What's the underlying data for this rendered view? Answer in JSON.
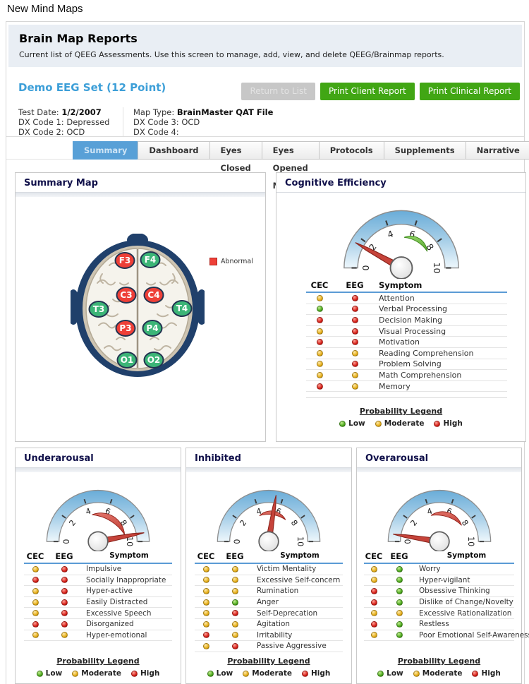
{
  "window": {
    "app_title": "New Mind Maps"
  },
  "header": {
    "title": "Brain Map Reports",
    "subtitle": "Current list of QEEG Assessments. Use this screen to manage, add, view, and delete QEEG/Brainmap reports."
  },
  "report": {
    "title": "Demo EEG Set (12 Point)",
    "buttons": {
      "return": "Return to List",
      "print_client": "Print Client Report",
      "print_clinical": "Print Clinical Report"
    },
    "info": {
      "test_date_label": "Test Date:",
      "test_date": "1/2/2007",
      "dx1_label": "DX Code 1:",
      "dx1": "Depressed",
      "dx2_label": "DX Code 2:",
      "dx2": "OCD",
      "map_type_label": "Map Type:",
      "map_type": "BrainMaster QAT File",
      "dx3_label": "DX Code 3:",
      "dx3": "OCD",
      "dx4_label": "DX Code 4:",
      "dx4": ""
    }
  },
  "tabs": [
    {
      "label": "Summary",
      "active": true
    },
    {
      "label": "Dashboard",
      "active": false
    },
    {
      "label": "Eyes Closed Maps",
      "active": false
    },
    {
      "label": "Eyes Opened Maps",
      "active": false
    },
    {
      "label": "Protocols",
      "active": false
    },
    {
      "label": "Supplements",
      "active": false
    },
    {
      "label": "Narrative",
      "active": false
    }
  ],
  "colors": {
    "accent_blue": "#58a0d7",
    "button_green": "#41a614",
    "abnormal_red": "#ee4038",
    "normal_green": "#3cb577",
    "dot_low": "#4ca81d",
    "dot_moderate": "#e5ad17",
    "dot_high": "#d61e17"
  },
  "summary_map": {
    "title": "Summary Map",
    "legend_label": "Abnormal",
    "electrodes": [
      {
        "id": "F3",
        "status": "abnormal"
      },
      {
        "id": "F4",
        "status": "normal"
      },
      {
        "id": "C3",
        "status": "abnormal"
      },
      {
        "id": "C4",
        "status": "abnormal"
      },
      {
        "id": "T3",
        "status": "normal"
      },
      {
        "id": "T4",
        "status": "normal"
      },
      {
        "id": "P3",
        "status": "abnormal"
      },
      {
        "id": "P4",
        "status": "normal"
      },
      {
        "id": "O1",
        "status": "normal"
      },
      {
        "id": "O2",
        "status": "normal"
      }
    ]
  },
  "probability_legend": {
    "title": "Probability Legend",
    "items": [
      {
        "label": "Low",
        "level": "low"
      },
      {
        "label": "Moderate",
        "level": "moderate"
      },
      {
        "label": "High",
        "level": "high"
      }
    ]
  },
  "chart_data": [
    {
      "type": "gauge",
      "title": "Cognitive Efficiency",
      "min": 0,
      "max": 10,
      "ticks": [
        0,
        2,
        4,
        6,
        8,
        10
      ],
      "value": 1.6,
      "band_from": 5.3,
      "band_to": 8.2,
      "band_color": "green"
    },
    {
      "type": "gauge",
      "title": "Underarousal",
      "min": 0,
      "max": 10,
      "ticks": [
        0,
        2,
        4,
        6,
        8,
        10
      ],
      "value": 9.4,
      "band_from": 4.3,
      "band_to": 9.2,
      "band_color": "red"
    },
    {
      "type": "gauge",
      "title": "Inhibited",
      "min": 0,
      "max": 10,
      "ticks": [
        0,
        2,
        4,
        6,
        8,
        10
      ],
      "value": 5.5,
      "band_from": 3.9,
      "band_to": 7.1,
      "band_color": "red"
    },
    {
      "type": "gauge",
      "title": "Overarousal",
      "min": 0,
      "max": 10,
      "ticks": [
        0,
        2,
        4,
        6,
        8,
        10
      ],
      "value": 0.5,
      "band_from": 4.0,
      "band_to": 8.0,
      "band_color": "red"
    }
  ],
  "panels": [
    {
      "title": "Cognitive Efficiency",
      "gauge": {
        "min": 0,
        "max": 10,
        "ticks": [
          0,
          2,
          4,
          6,
          8,
          10
        ],
        "value": 1.6,
        "band_from": 5.3,
        "band_to": 8.2,
        "band_color": "green"
      },
      "columns": {
        "cec": "CEC",
        "eeg": "EEG",
        "symptom": "Symptom"
      },
      "rows": [
        {
          "cec": "moderate",
          "eeg": "high",
          "symptom": "Attention"
        },
        {
          "cec": "low",
          "eeg": "high",
          "symptom": "Verbal Processing"
        },
        {
          "cec": "high",
          "eeg": "high",
          "symptom": "Decision Making"
        },
        {
          "cec": "moderate",
          "eeg": "high",
          "symptom": "Visual Processing"
        },
        {
          "cec": "high",
          "eeg": "high",
          "symptom": "Motivation"
        },
        {
          "cec": "moderate",
          "eeg": "moderate",
          "symptom": "Reading Comprehension"
        },
        {
          "cec": "moderate",
          "eeg": "high",
          "symptom": "Problem Solving"
        },
        {
          "cec": "moderate",
          "eeg": "moderate",
          "symptom": "Math Comprehension"
        },
        {
          "cec": "high",
          "eeg": "moderate",
          "symptom": "Memory"
        }
      ]
    },
    {
      "title": "Underarousal",
      "gauge": {
        "min": 0,
        "max": 10,
        "ticks": [
          0,
          2,
          4,
          6,
          8,
          10
        ],
        "value": 9.4,
        "band_from": 4.3,
        "band_to": 9.2,
        "band_color": "red"
      },
      "columns": {
        "cec": "CEC",
        "eeg": "EEG",
        "symptom": "Symptom"
      },
      "rows": [
        {
          "cec": "moderate",
          "eeg": "high",
          "symptom": "Impulsive"
        },
        {
          "cec": "high",
          "eeg": "high",
          "symptom": "Socially Inappropriate"
        },
        {
          "cec": "moderate",
          "eeg": "high",
          "symptom": "Hyper-active"
        },
        {
          "cec": "moderate",
          "eeg": "high",
          "symptom": "Easily Distracted"
        },
        {
          "cec": "moderate",
          "eeg": "high",
          "symptom": "Excessive Speech"
        },
        {
          "cec": "high",
          "eeg": "high",
          "symptom": "Disorganized"
        },
        {
          "cec": "moderate",
          "eeg": "moderate",
          "symptom": "Hyper-emotional"
        }
      ]
    },
    {
      "title": "Inhibited",
      "gauge": {
        "min": 0,
        "max": 10,
        "ticks": [
          0,
          2,
          4,
          6,
          8,
          10
        ],
        "value": 5.5,
        "band_from": 3.9,
        "band_to": 7.1,
        "band_color": "red"
      },
      "columns": {
        "cec": "CEC",
        "eeg": "EEG",
        "symptom": "Symptom"
      },
      "rows": [
        {
          "cec": "moderate",
          "eeg": "moderate",
          "symptom": "Victim Mentality"
        },
        {
          "cec": "moderate",
          "eeg": "moderate",
          "symptom": "Excessive Self-concern"
        },
        {
          "cec": "moderate",
          "eeg": "moderate",
          "symptom": "Rumination"
        },
        {
          "cec": "moderate",
          "eeg": "low",
          "symptom": "Anger"
        },
        {
          "cec": "moderate",
          "eeg": "high",
          "symptom": "Self-Deprecation"
        },
        {
          "cec": "moderate",
          "eeg": "moderate",
          "symptom": "Agitation"
        },
        {
          "cec": "high",
          "eeg": "moderate",
          "symptom": "Irritability"
        },
        {
          "cec": "moderate",
          "eeg": "high",
          "symptom": "Passive Aggressive"
        }
      ]
    },
    {
      "title": "Overarousal",
      "gauge": {
        "min": 0,
        "max": 10,
        "ticks": [
          0,
          2,
          4,
          6,
          8,
          10
        ],
        "value": 0.5,
        "band_from": 4.0,
        "band_to": 8.0,
        "band_color": "red"
      },
      "columns": {
        "cec": "CEC",
        "eeg": "EEG",
        "symptom": "Symptom"
      },
      "rows": [
        {
          "cec": "moderate",
          "eeg": "low",
          "symptom": "Worry"
        },
        {
          "cec": "moderate",
          "eeg": "low",
          "symptom": "Hyper-vigilant"
        },
        {
          "cec": "high",
          "eeg": "low",
          "symptom": "Obsessive Thinking"
        },
        {
          "cec": "high",
          "eeg": "low",
          "symptom": "Dislike of Change/Novelty"
        },
        {
          "cec": "moderate",
          "eeg": "moderate",
          "symptom": "Excessive Rationalization"
        },
        {
          "cec": "high",
          "eeg": "low",
          "symptom": "Restless"
        },
        {
          "cec": "moderate",
          "eeg": "low",
          "symptom": "Poor Emotional Self-Awareness"
        }
      ]
    }
  ]
}
